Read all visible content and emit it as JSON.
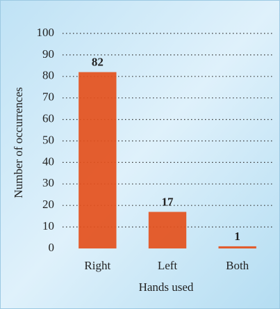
{
  "chart_data": {
    "type": "bar",
    "categories": [
      "Right",
      "Left",
      "Both"
    ],
    "values": [
      82,
      17,
      1
    ],
    "color": "#e4501c",
    "ylim": [
      0,
      100
    ],
    "yticks": [
      0,
      10,
      20,
      30,
      40,
      50,
      60,
      70,
      80,
      90,
      100
    ],
    "grid": true,
    "x_label": "Hands used",
    "y_label": "Number of occurrences"
  }
}
